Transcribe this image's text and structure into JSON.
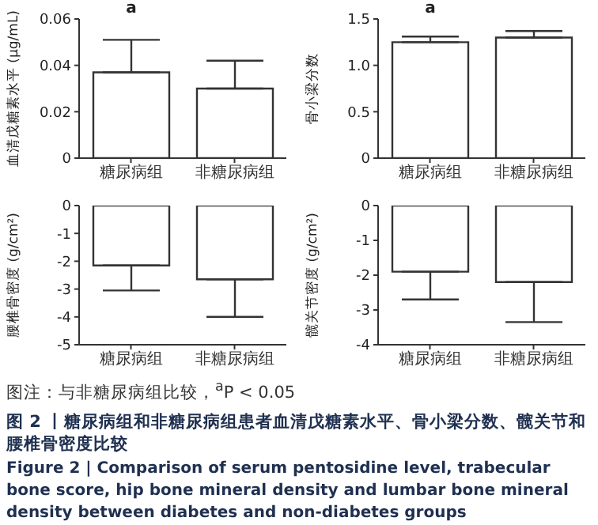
{
  "chart_data": [
    {
      "type": "bar",
      "ylabel": "血清戊糖素水平 (μg/mL)",
      "categories": [
        "糖尿病组",
        "非糖尿病组"
      ],
      "values": [
        0.037,
        0.03
      ],
      "errors": [
        [
          0.037,
          0.051
        ],
        [
          0.03,
          0.042
        ]
      ],
      "color": "#ffffff",
      "ylim": [
        0,
        0.06
      ],
      "yticks": [
        0,
        0.02,
        0.04,
        0.06
      ],
      "annotations": [
        "a"
      ]
    },
    {
      "type": "bar",
      "ylabel": "骨小梁分数",
      "categories": [
        "糖尿病组",
        "非糖尿病组"
      ],
      "values": [
        1.25,
        1.3
      ],
      "errors": [
        [
          1.25,
          1.31
        ],
        [
          1.3,
          1.37
        ]
      ],
      "color": "#ffffff",
      "ylim": [
        0,
        1.5
      ],
      "yticks": [
        0,
        0.5,
        {
          "value": 1,
          "label": "1.0"
        },
        1.5
      ],
      "annotations": [
        "a"
      ]
    },
    {
      "type": "bar",
      "ylabel": "腰椎骨密度 (g/cm²)",
      "categories": [
        "糖尿病组",
        "非糖尿病组"
      ],
      "values": [
        -2.15,
        -2.65
      ],
      "errors": [
        [
          -3.05,
          -2.15
        ],
        [
          -4.0,
          -2.65
        ]
      ],
      "color": "#ffffff",
      "ylim": [
        -5,
        0
      ],
      "yticks": [
        -5,
        -4,
        -3,
        -2,
        -1,
        0
      ]
    },
    {
      "type": "bar",
      "ylabel": "髋关节密度 (g/cm²)",
      "categories": [
        "糖尿病组",
        "非糖尿病组"
      ],
      "values": [
        -1.9,
        -2.2
      ],
      "errors": [
        [
          -2.7,
          -1.9
        ],
        [
          -3.35,
          -2.2
        ]
      ],
      "color": "#ffffff",
      "ylim": [
        -4,
        0
      ],
      "yticks": [
        -4,
        -3,
        -2,
        -1,
        0
      ],
      "title": "图 2 丨糖尿病组和非糖尿病组患者血清戊糖素水平、骨小梁分数、髋关节和腰椎骨密度比较",
      "subtitle": "Figure 2  |  Comparison of serum pentosidine level, trabecular bone score, hip bone mineral density and lumbar bone mineral density between diabetes and non-diabetes groups",
      "annotations": [
        "图注：与非糖尿病组比较，$^{a}$P < 0.05"
      ]
    }
  ]
}
